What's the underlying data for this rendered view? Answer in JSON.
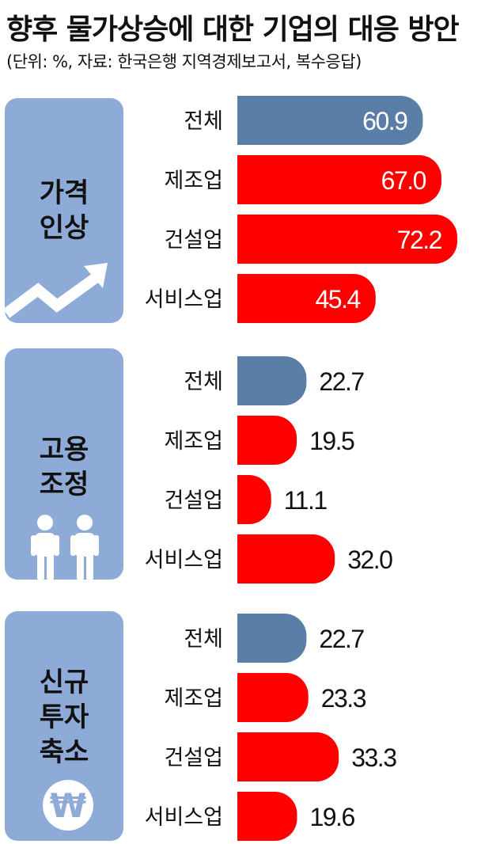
{
  "title": "향후 물가상승에 대한 기업의 대응 방안",
  "subtitle": "(단위: %, 자료: 한국은행 지역경제보고서, 복수응답)",
  "colors": {
    "total": "#5b7ea6",
    "sector": "#ff0000",
    "panel": "#8eaad6"
  },
  "chart_data": [
    {
      "type": "bar",
      "title": "가격 인상",
      "icon": "arrow-up-trend-icon",
      "categories": [
        "전체",
        "제조업",
        "건설업",
        "서비스업"
      ],
      "values": [
        60.9,
        67.0,
        72.2,
        45.4
      ],
      "value_labels": [
        "60.9",
        "67.0",
        "72.2",
        "45.4"
      ],
      "xlim": [
        0,
        80
      ]
    },
    {
      "type": "bar",
      "title": "고용 조정",
      "icon": "people-icon",
      "categories": [
        "전체",
        "제조업",
        "건설업",
        "서비스업"
      ],
      "values": [
        22.7,
        19.5,
        11.1,
        32.0
      ],
      "value_labels": [
        "22.7",
        "19.5",
        "11.1",
        "32.0"
      ],
      "xlim": [
        0,
        80
      ]
    },
    {
      "type": "bar",
      "title": "신규 투자 축소",
      "icon": "won-coin-icon",
      "categories": [
        "전체",
        "제조업",
        "건설업",
        "서비스업"
      ],
      "values": [
        22.7,
        23.3,
        33.3,
        19.6
      ],
      "value_labels": [
        "22.7",
        "23.3",
        "33.3",
        "19.6"
      ],
      "xlim": [
        0,
        80
      ]
    }
  ],
  "panel_labels": [
    "가격\n인상",
    "고용\n조정",
    "신규\n투자\n축소"
  ],
  "won_symbol": "₩"
}
